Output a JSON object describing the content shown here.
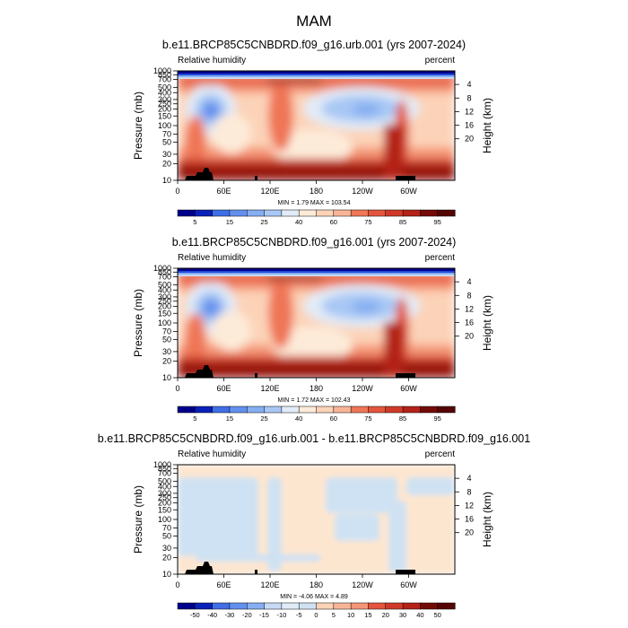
{
  "page_title": "MAM",
  "colors": {
    "rh_scale": [
      "#00008b",
      "#0a21b8",
      "#1f49d8",
      "#3f6fe6",
      "#6390ee",
      "#86aef2",
      "#a8c7f4",
      "#c7daf5",
      "#e2ecf8",
      "#fdebd9",
      "#fcd3b8",
      "#f8b596",
      "#f59677",
      "#ef7656",
      "#e3553c",
      "#cf3a28",
      "#b42219",
      "#951410",
      "#740a08",
      "#550505"
    ],
    "diff_scale": [
      "#00008b",
      "#0a21b8",
      "#1f49d8",
      "#3f6fe6",
      "#6390ee",
      "#86aef2",
      "#a8c7f4",
      "#c7daf5",
      "#e2ecf8",
      "#cfe2f3",
      "#fde6d0",
      "#fcd3b8",
      "#f8b596",
      "#f59677",
      "#ef7656",
      "#e3553c",
      "#cf3a28",
      "#b42219",
      "#951410",
      "#740a08",
      "#550505"
    ],
    "topography": "#000000"
  },
  "chart_data": [
    {
      "type": "heatmap",
      "title": "b.e11.BRCP85C5CNBDRD.f09_g16.urb.001 (yrs 2007-2024)",
      "left_string": "Relative humidity",
      "right_string": "percent",
      "xlabel": "",
      "ylabel": "Pressure (mb)",
      "y2label": "Height (km)",
      "x_ticks": [
        "0",
        "60E",
        "120E",
        "180",
        "120W",
        "60W"
      ],
      "y_ticks": [
        "1000",
        "850",
        "700",
        "500",
        "400",
        "300",
        "250",
        "200",
        "150",
        "100",
        "70",
        "50",
        "30",
        "20",
        "10"
      ],
      "y_range_mb": [
        1000,
        10
      ],
      "y2_ticks": [
        "20",
        "16",
        "12",
        "8",
        "4"
      ],
      "stats": "MIN =    1.79  MAX = 103.54",
      "colorbar_levels": [
        "5",
        "10",
        "15",
        "20",
        "25",
        "30",
        "40",
        "50",
        "60",
        "70",
        "75",
        "80",
        "85",
        "90",
        "95"
      ],
      "colorbar_labels": [
        "5",
        "15",
        "25",
        "40",
        "60",
        "75",
        "85",
        "95"
      ]
    },
    {
      "type": "heatmap",
      "title": "b.e11.BRCP85C5CNBDRD.f09_g16.001 (yrs 2007-2024)",
      "left_string": "Relative humidity",
      "right_string": "percent",
      "xlabel": "",
      "ylabel": "Pressure (mb)",
      "y2label": "Height (km)",
      "x_ticks": [
        "0",
        "60E",
        "120E",
        "180",
        "120W",
        "60W"
      ],
      "y_ticks": [
        "1000",
        "850",
        "700",
        "500",
        "400",
        "300",
        "250",
        "200",
        "150",
        "100",
        "70",
        "50",
        "30",
        "20",
        "10"
      ],
      "y_range_mb": [
        1000,
        10
      ],
      "y2_ticks": [
        "20",
        "16",
        "12",
        "8",
        "4"
      ],
      "stats": "MIN =    1.72  MAX = 102.43",
      "colorbar_levels": [
        "5",
        "10",
        "15",
        "20",
        "25",
        "30",
        "40",
        "50",
        "60",
        "70",
        "75",
        "80",
        "85",
        "90",
        "95"
      ],
      "colorbar_labels": [
        "5",
        "15",
        "25",
        "40",
        "60",
        "75",
        "85",
        "95"
      ]
    },
    {
      "type": "heatmap",
      "title": "b.e11.BRCP85C5CNBDRD.f09_g16.urb.001 - b.e11.BRCP85C5CNBDRD.f09_g16.001",
      "left_string": "Relative humidity",
      "right_string": "percent",
      "xlabel": "",
      "ylabel": "Pressure (mb)",
      "y2label": "Height (km)",
      "x_ticks": [
        "0",
        "60E",
        "120E",
        "180",
        "120W",
        "60W"
      ],
      "y_ticks": [
        "1000",
        "850",
        "700",
        "500",
        "400",
        "300",
        "250",
        "200",
        "150",
        "100",
        "70",
        "50",
        "30",
        "20",
        "10"
      ],
      "y_range_mb": [
        1000,
        10
      ],
      "y2_ticks": [
        "20",
        "16",
        "12",
        "8",
        "4"
      ],
      "stats": "MIN =   -4.06  MAX =   4.89",
      "colorbar_levels": [
        "-50",
        "-40",
        "-30",
        "-20",
        "-15",
        "-10",
        "-5",
        "0",
        "5",
        "10",
        "15",
        "20",
        "30",
        "40",
        "50"
      ],
      "colorbar_labels": [
        "-50",
        "-40",
        "-30",
        "-20",
        "-15",
        "-10",
        "-5",
        "0",
        "5",
        "10",
        "15",
        "20",
        "30",
        "40",
        "50"
      ]
    }
  ]
}
